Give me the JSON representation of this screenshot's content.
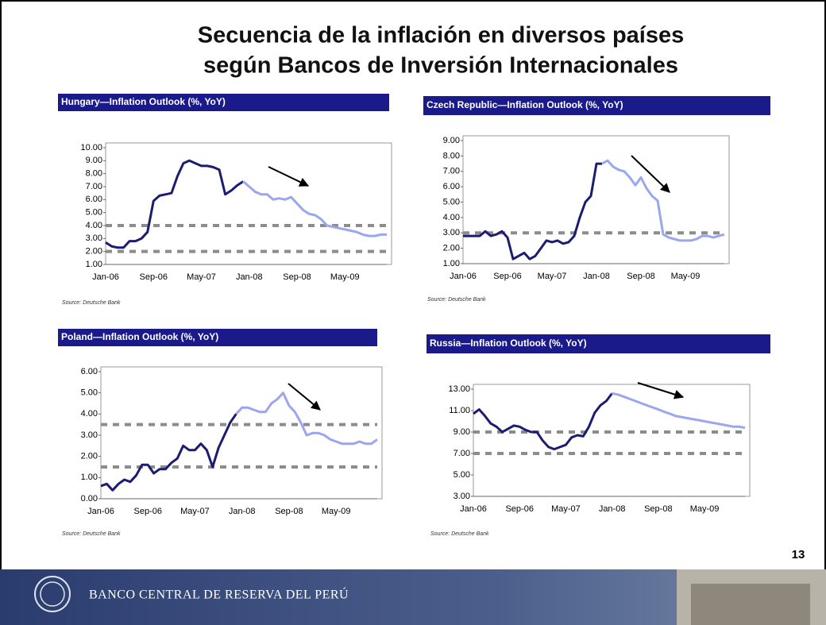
{
  "title_lines": [
    "Secuencia de la inflación en diversos países",
    "según Bancos de Inversión Internacionales"
  ],
  "page_number": "13",
  "footer": "BANCO CENTRAL DE RESERVA DEL PERÚ",
  "chart_data": [
    {
      "type": "line",
      "title": "Hungary—Inflation Outlook (%, YoY)",
      "source": "Source: Deutsche Bank",
      "categories": [
        "Jan-06",
        null,
        null,
        null,
        null,
        null,
        null,
        null,
        "Sep-06",
        null,
        null,
        null,
        null,
        null,
        null,
        null,
        "May-07",
        null,
        null,
        null,
        null,
        null,
        null,
        null,
        "Jan-08",
        null,
        null,
        null,
        null,
        null,
        null,
        null,
        "Sep-08",
        null,
        null,
        null,
        null,
        null,
        null,
        null,
        "May-09",
        null,
        null,
        null,
        null,
        null,
        null,
        null
      ],
      "series": [
        {
          "color": "#1c1c72",
          "values": [
            2.7,
            2.4,
            2.3,
            2.3,
            2.8,
            2.8,
            3.0,
            3.5,
            5.9,
            6.3,
            6.4,
            6.5,
            7.8,
            8.8,
            9.0,
            8.8,
            8.6,
            8.6,
            8.5,
            8.3,
            6.4,
            6.7,
            7.1,
            7.4,
            null,
            null,
            null,
            null,
            null,
            null,
            null,
            null,
            null,
            null,
            null,
            null,
            null,
            null,
            null,
            null,
            null,
            null,
            null,
            null,
            null,
            null,
            null,
            null
          ]
        },
        {
          "color": "#9aa6ee",
          "values": [
            null,
            null,
            null,
            null,
            null,
            null,
            null,
            null,
            null,
            null,
            null,
            null,
            null,
            null,
            null,
            null,
            null,
            null,
            null,
            null,
            null,
            null,
            null,
            7.4,
            7.0,
            6.6,
            6.4,
            6.4,
            6.0,
            6.1,
            6.0,
            6.2,
            5.7,
            5.2,
            4.9,
            4.8,
            4.5,
            4.0,
            3.9,
            3.8,
            3.7,
            3.6,
            3.5,
            3.3,
            3.2,
            3.2,
            3.3,
            3.3
          ]
        }
      ],
      "reference_lines": [
        2,
        4
      ],
      "reference_color": "#8c8c8c",
      "ylim": [
        1,
        10
      ],
      "yticks": [
        {
          "value": 1,
          "label": "1.00"
        },
        {
          "value": 2,
          "label": "2.00"
        },
        {
          "value": 3,
          "label": "3.00"
        },
        {
          "value": 4,
          "label": "4.00"
        },
        {
          "value": 5,
          "label": "5.00"
        },
        {
          "value": 6,
          "label": "6.00"
        },
        {
          "value": 7,
          "label": "7.00"
        },
        {
          "value": 8,
          "label": "8.00"
        },
        {
          "value": 9,
          "label": "9.00"
        },
        {
          "value": 10,
          "label": "10.00"
        }
      ]
    },
    {
      "type": "line",
      "title": "Czech Republic—Inflation Outlook (%, YoY)",
      "source": "Source: Deutsche Bank",
      "categories": [
        "Jan-06",
        null,
        null,
        null,
        null,
        null,
        null,
        null,
        "Sep-06",
        null,
        null,
        null,
        null,
        null,
        null,
        null,
        "May-07",
        null,
        null,
        null,
        null,
        null,
        null,
        null,
        "Jan-08",
        null,
        null,
        null,
        null,
        null,
        null,
        null,
        "Sep-08",
        null,
        null,
        null,
        null,
        null,
        null,
        null,
        "May-09",
        null,
        null,
        null,
        null,
        null,
        null,
        null
      ],
      "series": [
        {
          "color": "#1c1c72",
          "values": [
            2.8,
            2.8,
            2.8,
            2.8,
            3.1,
            2.8,
            2.9,
            3.1,
            2.7,
            1.3,
            1.5,
            1.7,
            1.3,
            1.5,
            2.0,
            2.5,
            2.4,
            2.5,
            2.3,
            2.4,
            2.8,
            4.0,
            5.0,
            5.4,
            7.5,
            7.5,
            null,
            null,
            null,
            null,
            null,
            null,
            null,
            null,
            null,
            null,
            null,
            null,
            null,
            null,
            null,
            null,
            null,
            null,
            null,
            null,
            null,
            null
          ]
        },
        {
          "color": "#9aa6ee",
          "values": [
            null,
            null,
            null,
            null,
            null,
            null,
            null,
            null,
            null,
            null,
            null,
            null,
            null,
            null,
            null,
            null,
            null,
            null,
            null,
            null,
            null,
            null,
            null,
            null,
            null,
            7.5,
            7.7,
            7.3,
            7.1,
            7.0,
            6.6,
            6.1,
            6.6,
            5.9,
            5.4,
            5.1,
            2.9,
            2.7,
            2.6,
            2.5,
            2.5,
            2.5,
            2.6,
            2.8,
            2.8,
            2.7,
            2.8,
            2.9
          ]
        }
      ],
      "reference_lines": [
        3
      ],
      "reference_color": "#8c8c8c",
      "ylim": [
        1,
        9
      ],
      "yticks": [
        {
          "value": 1,
          "label": "1.00"
        },
        {
          "value": 2,
          "label": "2.00"
        },
        {
          "value": 3,
          "label": "3.00"
        },
        {
          "value": 4,
          "label": "4.00"
        },
        {
          "value": 5,
          "label": "5.00"
        },
        {
          "value": 6,
          "label": "6.00"
        },
        {
          "value": 7,
          "label": "7.00"
        },
        {
          "value": 8,
          "label": "8.00"
        },
        {
          "value": 9,
          "label": "9.00"
        }
      ]
    },
    {
      "type": "line",
      "title": "Poland—Inflation Outlook (%, YoY)",
      "source": "Source: Deutsche Bank",
      "categories": [
        "Jan-06",
        null,
        null,
        null,
        null,
        null,
        null,
        null,
        "Sep-06",
        null,
        null,
        null,
        null,
        null,
        null,
        null,
        "May-07",
        null,
        null,
        null,
        null,
        null,
        null,
        null,
        "Jan-08",
        null,
        null,
        null,
        null,
        null,
        null,
        null,
        "Sep-08",
        null,
        null,
        null,
        null,
        null,
        null,
        null,
        "May-09",
        null,
        null,
        null,
        null,
        null,
        null,
        null
      ],
      "series": [
        {
          "color": "#1c1c72",
          "values": [
            0.6,
            0.7,
            0.4,
            0.7,
            0.9,
            0.8,
            1.1,
            1.6,
            1.6,
            1.2,
            1.4,
            1.4,
            1.7,
            1.9,
            2.5,
            2.3,
            2.3,
            2.6,
            2.3,
            1.5,
            2.4,
            3.0,
            3.6,
            4.0,
            null,
            null,
            null,
            null,
            null,
            null,
            null,
            null,
            null,
            null,
            null,
            null,
            null,
            null,
            null,
            null,
            null,
            null,
            null,
            null,
            null,
            null,
            null,
            null
          ]
        },
        {
          "color": "#9aa6ee",
          "values": [
            null,
            null,
            null,
            null,
            null,
            null,
            null,
            null,
            null,
            null,
            null,
            null,
            null,
            null,
            null,
            null,
            null,
            null,
            null,
            null,
            null,
            null,
            null,
            4.0,
            4.3,
            4.3,
            4.2,
            4.1,
            4.1,
            4.5,
            4.7,
            5.0,
            4.4,
            4.1,
            3.6,
            3.0,
            3.1,
            3.1,
            3.0,
            2.8,
            2.7,
            2.6,
            2.6,
            2.6,
            2.7,
            2.6,
            2.6,
            2.8
          ]
        }
      ],
      "reference_lines": [
        1.5,
        3.5
      ],
      "reference_color": "#8c8c8c",
      "ylim": [
        0,
        6
      ],
      "yticks": [
        {
          "value": 0,
          "label": "0.00"
        },
        {
          "value": 1,
          "label": "1.00"
        },
        {
          "value": 2,
          "label": "2.00"
        },
        {
          "value": 3,
          "label": "3.00"
        },
        {
          "value": 4,
          "label": "4.00"
        },
        {
          "value": 5,
          "label": "5.00"
        },
        {
          "value": 6,
          "label": "6.00"
        }
      ]
    },
    {
      "type": "line",
      "title": "Russia—Inflation Outlook (%, YoY)",
      "source": "Source: Deutsche Bank",
      "categories": [
        "Jan-06",
        null,
        null,
        null,
        null,
        null,
        null,
        null,
        "Sep-06",
        null,
        null,
        null,
        null,
        null,
        null,
        null,
        "May-07",
        null,
        null,
        null,
        null,
        null,
        null,
        null,
        "Jan-08",
        null,
        null,
        null,
        null,
        null,
        null,
        null,
        "Sep-08",
        null,
        null,
        null,
        null,
        null,
        null,
        null,
        "May-09",
        null,
        null,
        null,
        null,
        null,
        null,
        null
      ],
      "series": [
        {
          "color": "#1c1c72",
          "values": [
            10.7,
            11.1,
            10.5,
            9.8,
            9.5,
            9.0,
            9.3,
            9.6,
            9.5,
            9.2,
            9.0,
            9.0,
            8.2,
            7.6,
            7.4,
            7.6,
            7.8,
            8.5,
            8.7,
            8.6,
            9.5,
            10.8,
            11.5,
            11.9,
            12.6,
            null,
            null,
            null,
            null,
            null,
            null,
            null,
            null,
            null,
            null,
            null,
            null,
            null,
            null,
            null,
            null,
            null,
            null,
            null,
            null,
            null,
            null,
            null
          ]
        },
        {
          "color": "#9aa6ee",
          "values": [
            null,
            null,
            null,
            null,
            null,
            null,
            null,
            null,
            null,
            null,
            null,
            null,
            null,
            null,
            null,
            null,
            null,
            null,
            null,
            null,
            null,
            null,
            null,
            null,
            12.6,
            12.5,
            12.3,
            12.1,
            11.9,
            11.7,
            11.5,
            11.3,
            11.1,
            10.9,
            10.7,
            10.5,
            10.4,
            10.3,
            10.2,
            10.1,
            10.0,
            9.9,
            9.8,
            9.7,
            9.6,
            9.5,
            9.5,
            9.4
          ]
        }
      ],
      "reference_lines": [
        7,
        9
      ],
      "reference_color": "#8c8c8c",
      "ylim": [
        3,
        13
      ],
      "yticks": [
        {
          "value": 3,
          "label": "3.00"
        },
        {
          "value": 5,
          "label": "5.00"
        },
        {
          "value": 7,
          "label": "7.00"
        },
        {
          "value": 9,
          "label": "9.00"
        },
        {
          "value": 11,
          "label": "11.00"
        },
        {
          "value": 13,
          "label": "13.00"
        }
      ]
    }
  ]
}
